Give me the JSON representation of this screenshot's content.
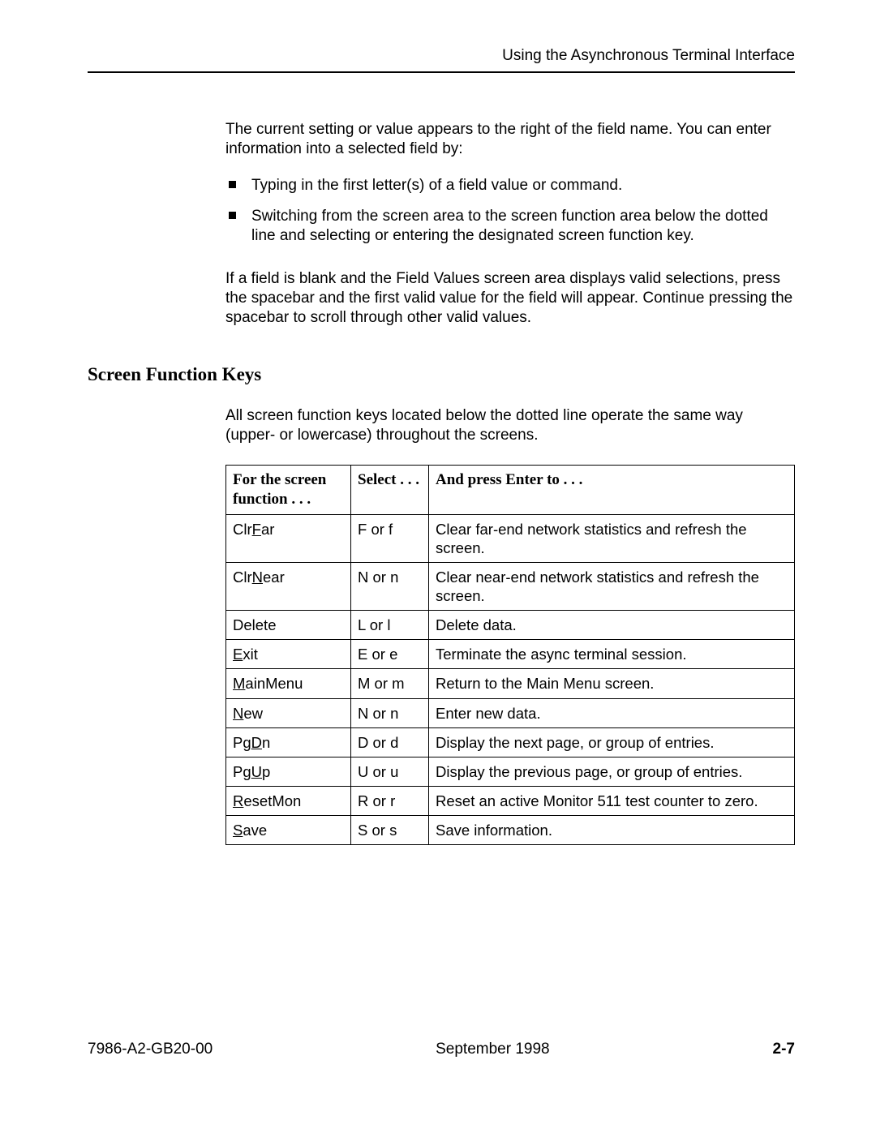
{
  "header": {
    "title": "Using the Asynchronous Terminal Interface"
  },
  "intro": {
    "p1": "The current setting or value appears to the right of the field name. You can enter information into a selected field by:",
    "bullets": [
      "Typing in the first letter(s) of a field value or command.",
      "Switching from the screen area to the screen function area below the dotted line and selecting or entering the designated screen function key."
    ],
    "p2": "If a field is blank and the Field Values screen area displays valid selections, press the spacebar and the first valid value for the field will appear. Continue pressing the spacebar to scroll through other valid values."
  },
  "section": {
    "heading": "Screen Function Keys",
    "lead": "All screen function keys located below the dotted line operate the same way (upper- or lowercase) throughout the screens.",
    "table": {
      "head": {
        "c1a": "For the screen",
        "c1b": "function . . .",
        "c2": "Select . . .",
        "c3": "And press Enter to . . ."
      },
      "rows": [
        {
          "fn_pre": "Clr",
          "fn_u": "F",
          "fn_post": "ar",
          "sel": "F or f",
          "desc": "Clear far-end network statistics and refresh the screen."
        },
        {
          "fn_pre": "Clr",
          "fn_u": "N",
          "fn_post": "ear",
          "sel": "N or n",
          "desc": "Clear near-end network statistics and refresh the screen."
        },
        {
          "fn_pre": "Delete",
          "fn_u": "",
          "fn_post": "",
          "sel": "L or l",
          "desc": "Delete data."
        },
        {
          "fn_pre": "",
          "fn_u": "E",
          "fn_post": "xit",
          "sel": "E or e",
          "desc": "Terminate the async terminal session."
        },
        {
          "fn_pre": "",
          "fn_u": "M",
          "fn_post": "ainMenu",
          "sel": "M or m",
          "desc": "Return to the Main Menu screen."
        },
        {
          "fn_pre": "",
          "fn_u": "N",
          "fn_post": "ew",
          "sel": "N or n",
          "desc": "Enter new data."
        },
        {
          "fn_pre": "Pg",
          "fn_u": "D",
          "fn_post": "n",
          "sel": "D or d",
          "desc": "Display the next page, or group of entries."
        },
        {
          "fn_pre": "Pg",
          "fn_u": "U",
          "fn_post": "p",
          "sel": "U or u",
          "desc": "Display the previous page, or group of entries."
        },
        {
          "fn_pre": "",
          "fn_u": "R",
          "fn_post": "esetMon",
          "sel": "R or r",
          "desc": "Reset an active Monitor 511 test counter to zero."
        },
        {
          "fn_pre": "",
          "fn_u": "S",
          "fn_post": "ave",
          "sel": "S or s",
          "desc": "Save information."
        }
      ]
    }
  },
  "footer": {
    "doc_id": "7986-A2-GB20-00",
    "date": "September 1998",
    "page": "2-7"
  }
}
